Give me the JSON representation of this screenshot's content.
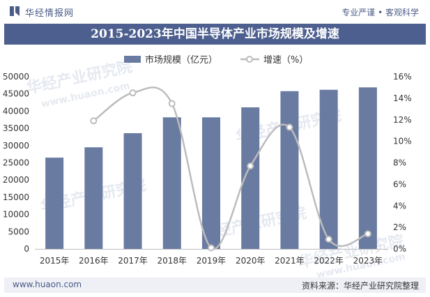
{
  "header": {
    "logo_text": "华经情报网",
    "tagline": "专业严谨 • 客观科学"
  },
  "footer": {
    "site": "www.huaon.com",
    "source": "资料来源：华经产业研究院整理"
  },
  "watermark": {
    "text": "华经产业研究院",
    "url": "www.huaon.com"
  },
  "colors": {
    "bar": "#6a7ba2",
    "line": "#bcbcbc",
    "title_bg": "#4d5f8f",
    "brand": "#4a5b86"
  },
  "chart_data": {
    "type": "bar",
    "title": "2015-2023年中国半导体产业市场规模及增速",
    "categories": [
      "2015年",
      "2016年",
      "2017年",
      "2018年",
      "2019年",
      "2020年",
      "2021年",
      "2022年",
      "2023年"
    ],
    "series": [
      {
        "name": "市场规模（亿元）",
        "type": "bar",
        "axis": "left",
        "values": [
          26500,
          29500,
          33600,
          38200,
          38200,
          41100,
          45800,
          46200,
          46900
        ]
      },
      {
        "name": "增速（%）",
        "type": "line",
        "axis": "right",
        "values": [
          null,
          11.9,
          14.5,
          13.5,
          0.1,
          7.7,
          11.3,
          0.9,
          1.4
        ]
      }
    ],
    "y_left": {
      "min": 0,
      "max": 50000,
      "ticks": [
        "0",
        "5000",
        "10000",
        "15000",
        "20000",
        "25000",
        "30000",
        "35000",
        "40000",
        "45000",
        "50000"
      ]
    },
    "y_right": {
      "min": 0,
      "max": 16,
      "ticks": [
        "0%",
        "2%",
        "4%",
        "6%",
        "8%",
        "10%",
        "12%",
        "14%",
        "16%"
      ]
    },
    "legend": "top-center",
    "grid": false
  }
}
